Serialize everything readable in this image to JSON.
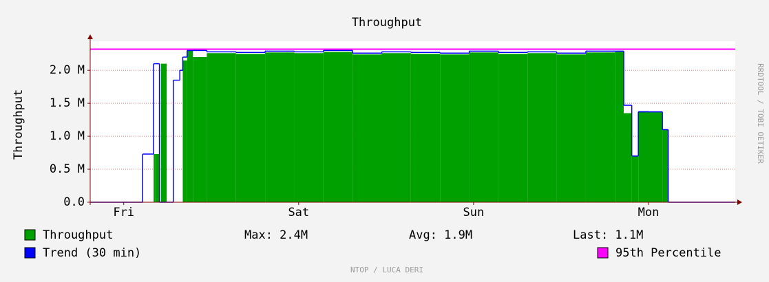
{
  "chart_data": {
    "type": "step-area",
    "title": "Throughput",
    "y_label": "Throughput",
    "side_text": "RRDTOOL / TOBI OETIKER",
    "footer": "NTOP / LUCA DERI",
    "x": [
      0,
      7.2,
      8.7,
      8.9,
      9.5,
      9.7,
      10.5,
      11.4,
      12.3,
      12.7,
      13.3,
      14.1,
      16,
      20,
      24,
      28,
      32,
      36,
      40,
      44,
      48,
      52,
      56,
      60,
      64,
      68,
      72,
      73.2,
      74.3,
      75.2,
      76.6,
      78.5,
      79.3
    ],
    "series": [
      {
        "name": "Throughput",
        "color": "#00a000",
        "values": [
          0,
          0,
          730000,
          730000,
          0,
          2100000,
          0,
          0,
          0,
          2150000,
          2300000,
          2200000,
          2260000,
          2250000,
          2270000,
          2260000,
          2280000,
          2240000,
          2260000,
          2250000,
          2240000,
          2270000,
          2250000,
          2260000,
          2240000,
          2270000,
          2280000,
          1350000,
          700000,
          1380000,
          1370000,
          1100000,
          0
        ]
      },
      {
        "name": "Trend (30 min)",
        "color": "#0000ff",
        "values": [
          0,
          730000,
          2100000,
          2100000,
          0,
          0,
          0,
          1850000,
          2000000,
          2200000,
          2300000,
          2300000,
          2280000,
          2270000,
          2290000,
          2280000,
          2300000,
          2260000,
          2280000,
          2270000,
          2260000,
          2290000,
          2270000,
          2280000,
          2260000,
          2290000,
          2290000,
          1470000,
          700000,
          1370000,
          1370000,
          1100000,
          0
        ]
      }
    ],
    "percentile": {
      "name": "95th Percentile",
      "color": "#ff00ff",
      "value": 2320000
    },
    "stats": [
      "Max: 2.4M",
      "Avg: 1.9M",
      "Last: 1.1M"
    ],
    "xlim": [
      0,
      88.5
    ],
    "xticks": [
      {
        "value": 4.6,
        "label": "Fri"
      },
      {
        "value": 28.6,
        "label": "Sat"
      },
      {
        "value": 52.6,
        "label": "Sun"
      },
      {
        "value": 76.6,
        "label": "Mon"
      }
    ],
    "ylim": [
      0,
      2440000
    ],
    "yticks": [
      {
        "value": 0,
        "label": "0.0"
      },
      {
        "value": 500000,
        "label": "0.5 M"
      },
      {
        "value": 1000000,
        "label": "1.0 M"
      },
      {
        "value": 1500000,
        "label": "1.5 M"
      },
      {
        "value": 2000000,
        "label": "2.0 M"
      }
    ],
    "grid": true
  }
}
